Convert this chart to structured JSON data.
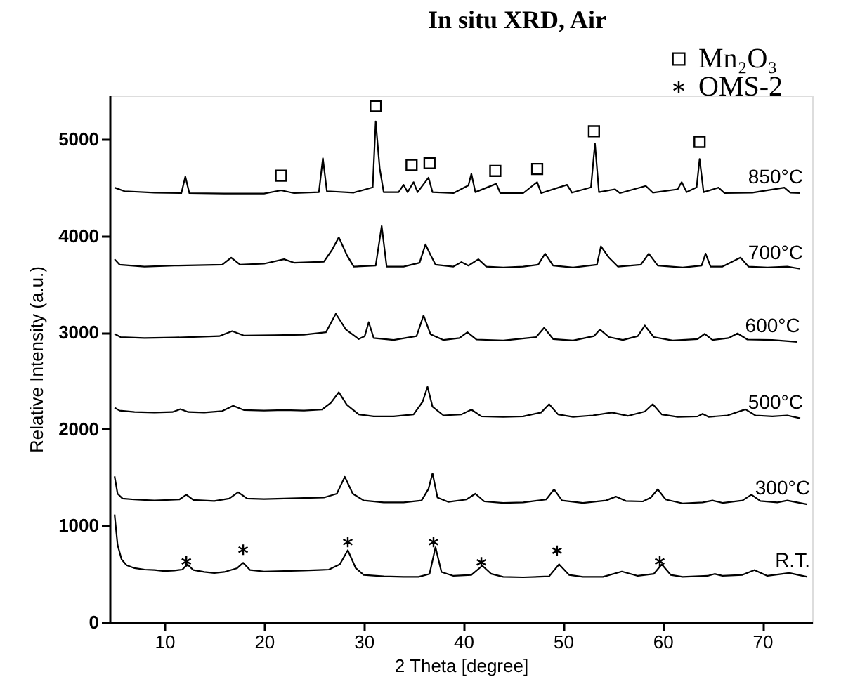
{
  "chart_data": {
    "type": "line",
    "title": "In situ XRD, Air",
    "xlabel": "2 Theta [degree]",
    "ylabel": "Relative Intensity (a.u.)",
    "xlim": [
      4.5,
      75
    ],
    "ylim": [
      0,
      5450
    ],
    "xticks": [
      10,
      20,
      30,
      40,
      50,
      60,
      70
    ],
    "yticks": [
      0,
      1000,
      2000,
      3000,
      4000,
      5000
    ],
    "grid": false,
    "legend": "top right",
    "marker": "none",
    "line_style": "solid",
    "series": [
      {
        "name": "850°C",
        "color": "#000000",
        "x": [
          5.0,
          6,
          9,
          11.7,
          12.1,
          12.5,
          16,
          20,
          21.7,
          23,
          25.5,
          25.9,
          26.3,
          29,
          30.9,
          31.2,
          31.6,
          32,
          33.5,
          34.0,
          34.4,
          35.0,
          35.4,
          36.5,
          36.9,
          39,
          40.5,
          40.8,
          41.2,
          43.3,
          43.7,
          46,
          47.4,
          47.8,
          50.4,
          50.9,
          52.8,
          53.2,
          53.6,
          55.2,
          55.7,
          58.3,
          59,
          61.5,
          61.9,
          62.4,
          63.4,
          63.7,
          64.1,
          65.6,
          66.2,
          69,
          72.2,
          72.8,
          73.8
        ],
        "values": [
          4497,
          4460,
          4445,
          4440,
          4611,
          4440,
          4435,
          4435,
          4469,
          4440,
          4450,
          4800,
          4460,
          4445,
          4500,
          5183,
          4697,
          4450,
          4450,
          4526,
          4450,
          4554,
          4450,
          4600,
          4450,
          4440,
          4520,
          4640,
          4450,
          4537,
          4440,
          4440,
          4554,
          4440,
          4526,
          4445,
          4500,
          4954,
          4450,
          4480,
          4440,
          4514,
          4445,
          4480,
          4554,
          4450,
          4500,
          4794,
          4450,
          4497,
          4440,
          4445,
          4497,
          4445,
          4440
        ]
      },
      {
        "name": "700°C",
        "color": "#000000",
        "x": [
          5.0,
          5.5,
          8,
          11,
          15.8,
          16.7,
          17.6,
          20,
          22.0,
          23,
          26,
          26.8,
          27.5,
          28.3,
          29,
          31.2,
          31.8,
          32.3,
          34,
          35.6,
          36.2,
          36.7,
          37.2,
          39,
          39.8,
          40.5,
          41.5,
          42.3,
          44,
          46,
          47.5,
          48.2,
          49,
          51,
          53.4,
          53.8,
          54.6,
          55.5,
          57.8,
          58.6,
          59.5,
          62,
          63.9,
          64.3,
          64.8,
          66,
          67.8,
          68.6,
          70.5,
          72.5,
          73.8
        ],
        "values": [
          3756,
          3700,
          3680,
          3690,
          3700,
          3773,
          3700,
          3710,
          3756,
          3720,
          3730,
          3850,
          3983,
          3800,
          3680,
          3690,
          4100,
          3680,
          3680,
          3720,
          3910,
          3800,
          3700,
          3680,
          3727,
          3690,
          3756,
          3680,
          3670,
          3680,
          3700,
          3814,
          3690,
          3670,
          3700,
          3890,
          3773,
          3680,
          3700,
          3814,
          3690,
          3670,
          3690,
          3814,
          3680,
          3680,
          3773,
          3680,
          3670,
          3680,
          3657
        ]
      },
      {
        "name": "600°C",
        "color": "#000000",
        "x": [
          5.0,
          5.6,
          8,
          11,
          15.5,
          16.8,
          18,
          21,
          24,
          26.2,
          27.2,
          28.2,
          29.5,
          30.1,
          30.5,
          31,
          33,
          35.3,
          36.0,
          36.7,
          38,
          39.6,
          40.4,
          41.3,
          44,
          47.3,
          48.1,
          49,
          51,
          53.1,
          53.7,
          54.6,
          56,
          57.5,
          58.2,
          59.1,
          61,
          63.5,
          64.2,
          65,
          66.6,
          67.5,
          68.5,
          71,
          73.5
        ],
        "values": [
          2983,
          2950,
          2940,
          2945,
          2960,
          3012,
          2965,
          2970,
          2975,
          3000,
          3192,
          3030,
          2930,
          2960,
          3105,
          2940,
          2920,
          2960,
          3174,
          2980,
          2920,
          2940,
          3000,
          2925,
          2915,
          2950,
          3047,
          2930,
          2915,
          2960,
          3029,
          2950,
          2920,
          2960,
          3070,
          2950,
          2915,
          2930,
          2983,
          2920,
          2940,
          2988,
          2925,
          2920,
          2900
        ]
      },
      {
        "name": "500°C",
        "color": "#000000",
        "x": [
          5.0,
          5.5,
          7,
          9,
          10.8,
          11.6,
          12.4,
          14,
          15.8,
          16.9,
          18,
          20,
          22,
          24,
          25.8,
          26.7,
          27.5,
          28.3,
          29.5,
          31,
          33,
          35,
          35.9,
          36.4,
          36.9,
          38,
          39.8,
          40.8,
          41.8,
          44,
          46,
          47.8,
          48.6,
          49.5,
          51,
          53,
          54.9,
          56.5,
          58.2,
          59.0,
          59.9,
          61.5,
          63.5,
          64.0,
          64.6,
          66.5,
          68.3,
          69.3,
          71,
          72.5,
          73.8
        ],
        "values": [
          2220,
          2190,
          2175,
          2170,
          2175,
          2205,
          2175,
          2170,
          2185,
          2240,
          2195,
          2190,
          2195,
          2190,
          2200,
          2270,
          2380,
          2250,
          2150,
          2130,
          2130,
          2150,
          2280,
          2436,
          2230,
          2140,
          2150,
          2200,
          2130,
          2125,
          2130,
          2170,
          2256,
          2150,
          2125,
          2140,
          2170,
          2135,
          2180,
          2256,
          2150,
          2125,
          2130,
          2157,
          2125,
          2140,
          2203,
          2140,
          2130,
          2140,
          2110
        ]
      },
      {
        "name": "300°C",
        "color": "#000000",
        "x": [
          5.0,
          5.3,
          5.8,
          7,
          9,
          11.5,
          12.2,
          12.9,
          15,
          16.5,
          17.4,
          18.3,
          20,
          22,
          24,
          26,
          27.3,
          28.1,
          28.9,
          30,
          32,
          34,
          35.8,
          36.5,
          36.9,
          37.4,
          38.5,
          40.3,
          41.2,
          42.1,
          44,
          46,
          48.3,
          49.1,
          49.9,
          52,
          54.3,
          55.3,
          56.3,
          58,
          58.8,
          59.5,
          60.3,
          62,
          64,
          65,
          66,
          68,
          68.9,
          69.8,
          71.5,
          72.5,
          74.5
        ],
        "values": [
          1510,
          1330,
          1280,
          1270,
          1260,
          1270,
          1320,
          1265,
          1255,
          1280,
          1345,
          1280,
          1275,
          1280,
          1285,
          1290,
          1330,
          1505,
          1330,
          1260,
          1240,
          1240,
          1260,
          1380,
          1540,
          1290,
          1245,
          1270,
          1330,
          1250,
          1235,
          1240,
          1270,
          1375,
          1260,
          1235,
          1260,
          1300,
          1255,
          1250,
          1290,
          1375,
          1270,
          1230,
          1240,
          1260,
          1235,
          1260,
          1320,
          1255,
          1240,
          1260,
          1220
        ]
      },
      {
        "name": "R.T.",
        "color": "#000000",
        "x": [
          5.0,
          5.3,
          5.7,
          6.2,
          7,
          8,
          9,
          10,
          11,
          11.8,
          12.3,
          12.9,
          14,
          15,
          16,
          17.3,
          17.9,
          18.6,
          20,
          22,
          24,
          25.5,
          26.5,
          27.6,
          28.4,
          29.2,
          30,
          32,
          34,
          35.5,
          36.6,
          37.2,
          37.8,
          39,
          40.8,
          41.9,
          42.8,
          44,
          46,
          48.6,
          49.6,
          50.6,
          52,
          54,
          55.9,
          57.5,
          59.1,
          59.9,
          60.8,
          62,
          64.5,
          65.2,
          66,
          68,
          69.2,
          70.5,
          72.7,
          74.5
        ],
        "values": [
          1115,
          800,
          650,
          590,
          560,
          545,
          540,
          530,
          535,
          545,
          600,
          540,
          520,
          510,
          520,
          560,
          615,
          540,
          525,
          530,
          535,
          540,
          545,
          600,
          745,
          560,
          490,
          475,
          470,
          470,
          500,
          775,
          520,
          480,
          490,
          585,
          500,
          470,
          465,
          475,
          600,
          490,
          470,
          470,
          525,
          480,
          500,
          600,
          490,
          470,
          480,
          500,
          480,
          490,
          540,
          480,
          510,
          470
        ]
      },
      {
        "name": "Mn₂O₃",
        "type": "scatter",
        "marker": "square",
        "color": "#000000",
        "x": [
          21.7,
          31.2,
          34.8,
          36.6,
          43.2,
          47.4,
          53.1,
          63.7
        ],
        "values": [
          4620,
          5340,
          4730,
          4750,
          4670,
          4690,
          5080,
          4970
        ]
      },
      {
        "name": "OMS-2",
        "type": "scatter",
        "marker": "cross",
        "color": "#000000",
        "x": [
          12.2,
          17.9,
          28.4,
          37.0,
          41.8,
          49.4,
          59.7
        ],
        "values": [
          630,
          750,
          830,
          830,
          620,
          740,
          630
        ]
      }
    ]
  }
}
